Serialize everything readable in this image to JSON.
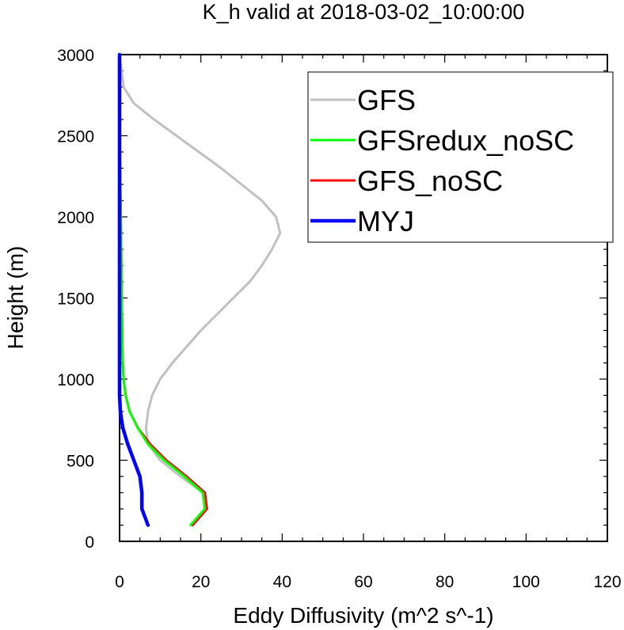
{
  "chart_data": {
    "type": "line",
    "title": "K_h valid at 2018-03-02_10:00:00",
    "xlabel": "Eddy Diffusivity (m^2 s^-1)",
    "ylabel": "Height (m)",
    "xlim": [
      0,
      120
    ],
    "ylim": [
      0,
      3000
    ],
    "xticks": [
      0,
      20,
      40,
      60,
      80,
      100,
      120
    ],
    "yticks": [
      0,
      500,
      1000,
      1500,
      2000,
      2500,
      3000
    ],
    "grid": false,
    "legend_position": "top-right",
    "series": [
      {
        "name": "GFS",
        "color": "#c0c0c0",
        "points": [
          [
            17.5,
            100
          ],
          [
            21,
            200
          ],
          [
            20.5,
            300
          ],
          [
            15,
            400
          ],
          [
            10,
            500
          ],
          [
            7,
            600
          ],
          [
            6.5,
            700
          ],
          [
            7,
            800
          ],
          [
            8,
            900
          ],
          [
            10,
            1000
          ],
          [
            13,
            1100
          ],
          [
            16.5,
            1200
          ],
          [
            20,
            1300
          ],
          [
            24,
            1400
          ],
          [
            28,
            1500
          ],
          [
            32,
            1600
          ],
          [
            35,
            1700
          ],
          [
            37.5,
            1800
          ],
          [
            39.5,
            1900
          ],
          [
            38.5,
            2000
          ],
          [
            35,
            2100
          ],
          [
            30,
            2200
          ],
          [
            25,
            2300
          ],
          [
            19.5,
            2400
          ],
          [
            14,
            2500
          ],
          [
            8.5,
            2600
          ],
          [
            3.5,
            2700
          ],
          [
            1,
            2800
          ],
          [
            0.5,
            2900
          ],
          [
            0,
            3000
          ]
        ]
      },
      {
        "name": "GFSredux_noSC",
        "color": "#00ff00",
        "points": [
          [
            17.5,
            100
          ],
          [
            21,
            200
          ],
          [
            20.5,
            300
          ],
          [
            16,
            400
          ],
          [
            11,
            500
          ],
          [
            7,
            600
          ],
          [
            4.5,
            700
          ],
          [
            2.5,
            800
          ],
          [
            1.5,
            900
          ],
          [
            1,
            1000
          ],
          [
            0.8,
            1100
          ],
          [
            0.7,
            1200
          ],
          [
            0.6,
            1400
          ],
          [
            0.5,
            1600
          ],
          [
            0.4,
            1800
          ],
          [
            0.3,
            2000
          ],
          [
            0.2,
            2200
          ],
          [
            0.1,
            2400
          ],
          [
            0.05,
            2600
          ],
          [
            0,
            2800
          ],
          [
            0,
            3000
          ]
        ]
      },
      {
        "name": "GFS_noSC",
        "color": "#ff0000",
        "points": [
          [
            18,
            100
          ],
          [
            21.5,
            200
          ],
          [
            21,
            300
          ],
          [
            16.5,
            400
          ],
          [
            11.5,
            500
          ],
          [
            7.5,
            600
          ],
          [
            4.5,
            700
          ],
          [
            2.5,
            800
          ],
          [
            1.5,
            900
          ],
          [
            1,
            1000
          ],
          [
            0.8,
            1100
          ],
          [
            0.7,
            1200
          ],
          [
            0.6,
            1400
          ],
          [
            0.5,
            1600
          ],
          [
            0.4,
            1800
          ],
          [
            0.3,
            2000
          ],
          [
            0.2,
            2200
          ],
          [
            0.1,
            2400
          ],
          [
            0.05,
            2600
          ],
          [
            0,
            2800
          ],
          [
            0,
            3000
          ]
        ]
      },
      {
        "name": "MYJ",
        "color": "#0000ff",
        "points": [
          [
            7,
            100
          ],
          [
            5.5,
            200
          ],
          [
            5.5,
            300
          ],
          [
            5,
            400
          ],
          [
            3.5,
            500
          ],
          [
            2,
            600
          ],
          [
            0.8,
            700
          ],
          [
            0.2,
            800
          ],
          [
            0,
            900
          ],
          [
            0,
            1000
          ],
          [
            0,
            1500
          ],
          [
            0,
            2000
          ],
          [
            0,
            2500
          ],
          [
            0,
            3000
          ]
        ]
      }
    ]
  }
}
